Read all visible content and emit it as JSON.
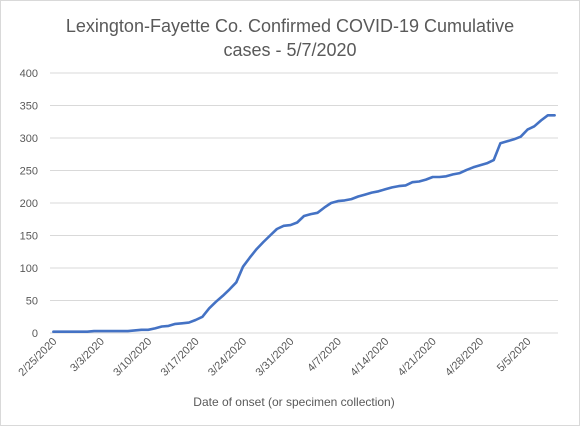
{
  "chart_data": {
    "type": "line",
    "title_line1": "Lexington-Fayette Co. Confirmed COVID-19 Cumulative",
    "title_line2": "cases - 5/7/2020",
    "xlabel": "Date of onset (or specimen collection)",
    "ylabel": "",
    "ylim": [
      0,
      400
    ],
    "yticks": [
      0,
      50,
      100,
      150,
      200,
      250,
      300,
      350,
      400
    ],
    "xtick_labels": [
      "2/25/2020",
      "3/3/2020",
      "3/10/2020",
      "3/17/2020",
      "3/24/2020",
      "3/31/2020",
      "4/7/2020",
      "4/14/2020",
      "4/21/2020",
      "4/28/2020",
      "5/5/2020"
    ],
    "grid": true,
    "legend": "none",
    "colors": {
      "line": "#4472c4",
      "grid": "#d9d9d9",
      "text": "#595959"
    },
    "start_date": "2/25/2020",
    "series": [
      {
        "values": [
          2,
          2,
          2,
          2,
          2,
          2,
          3,
          3,
          3,
          3,
          3,
          3,
          4,
          5,
          5,
          7,
          10,
          11,
          14,
          15,
          16,
          20,
          25,
          38,
          48,
          57,
          67,
          78,
          102,
          116,
          129,
          140,
          150,
          160,
          165,
          166,
          170,
          180,
          183,
          185,
          193,
          200,
          203,
          204,
          206,
          210,
          213,
          216,
          218,
          221,
          224,
          226,
          227,
          232,
          233,
          236,
          240,
          240,
          241,
          244,
          246,
          251,
          255,
          258,
          261,
          266,
          292,
          295,
          298,
          302,
          313,
          318,
          327,
          335,
          335
        ]
      }
    ]
  }
}
